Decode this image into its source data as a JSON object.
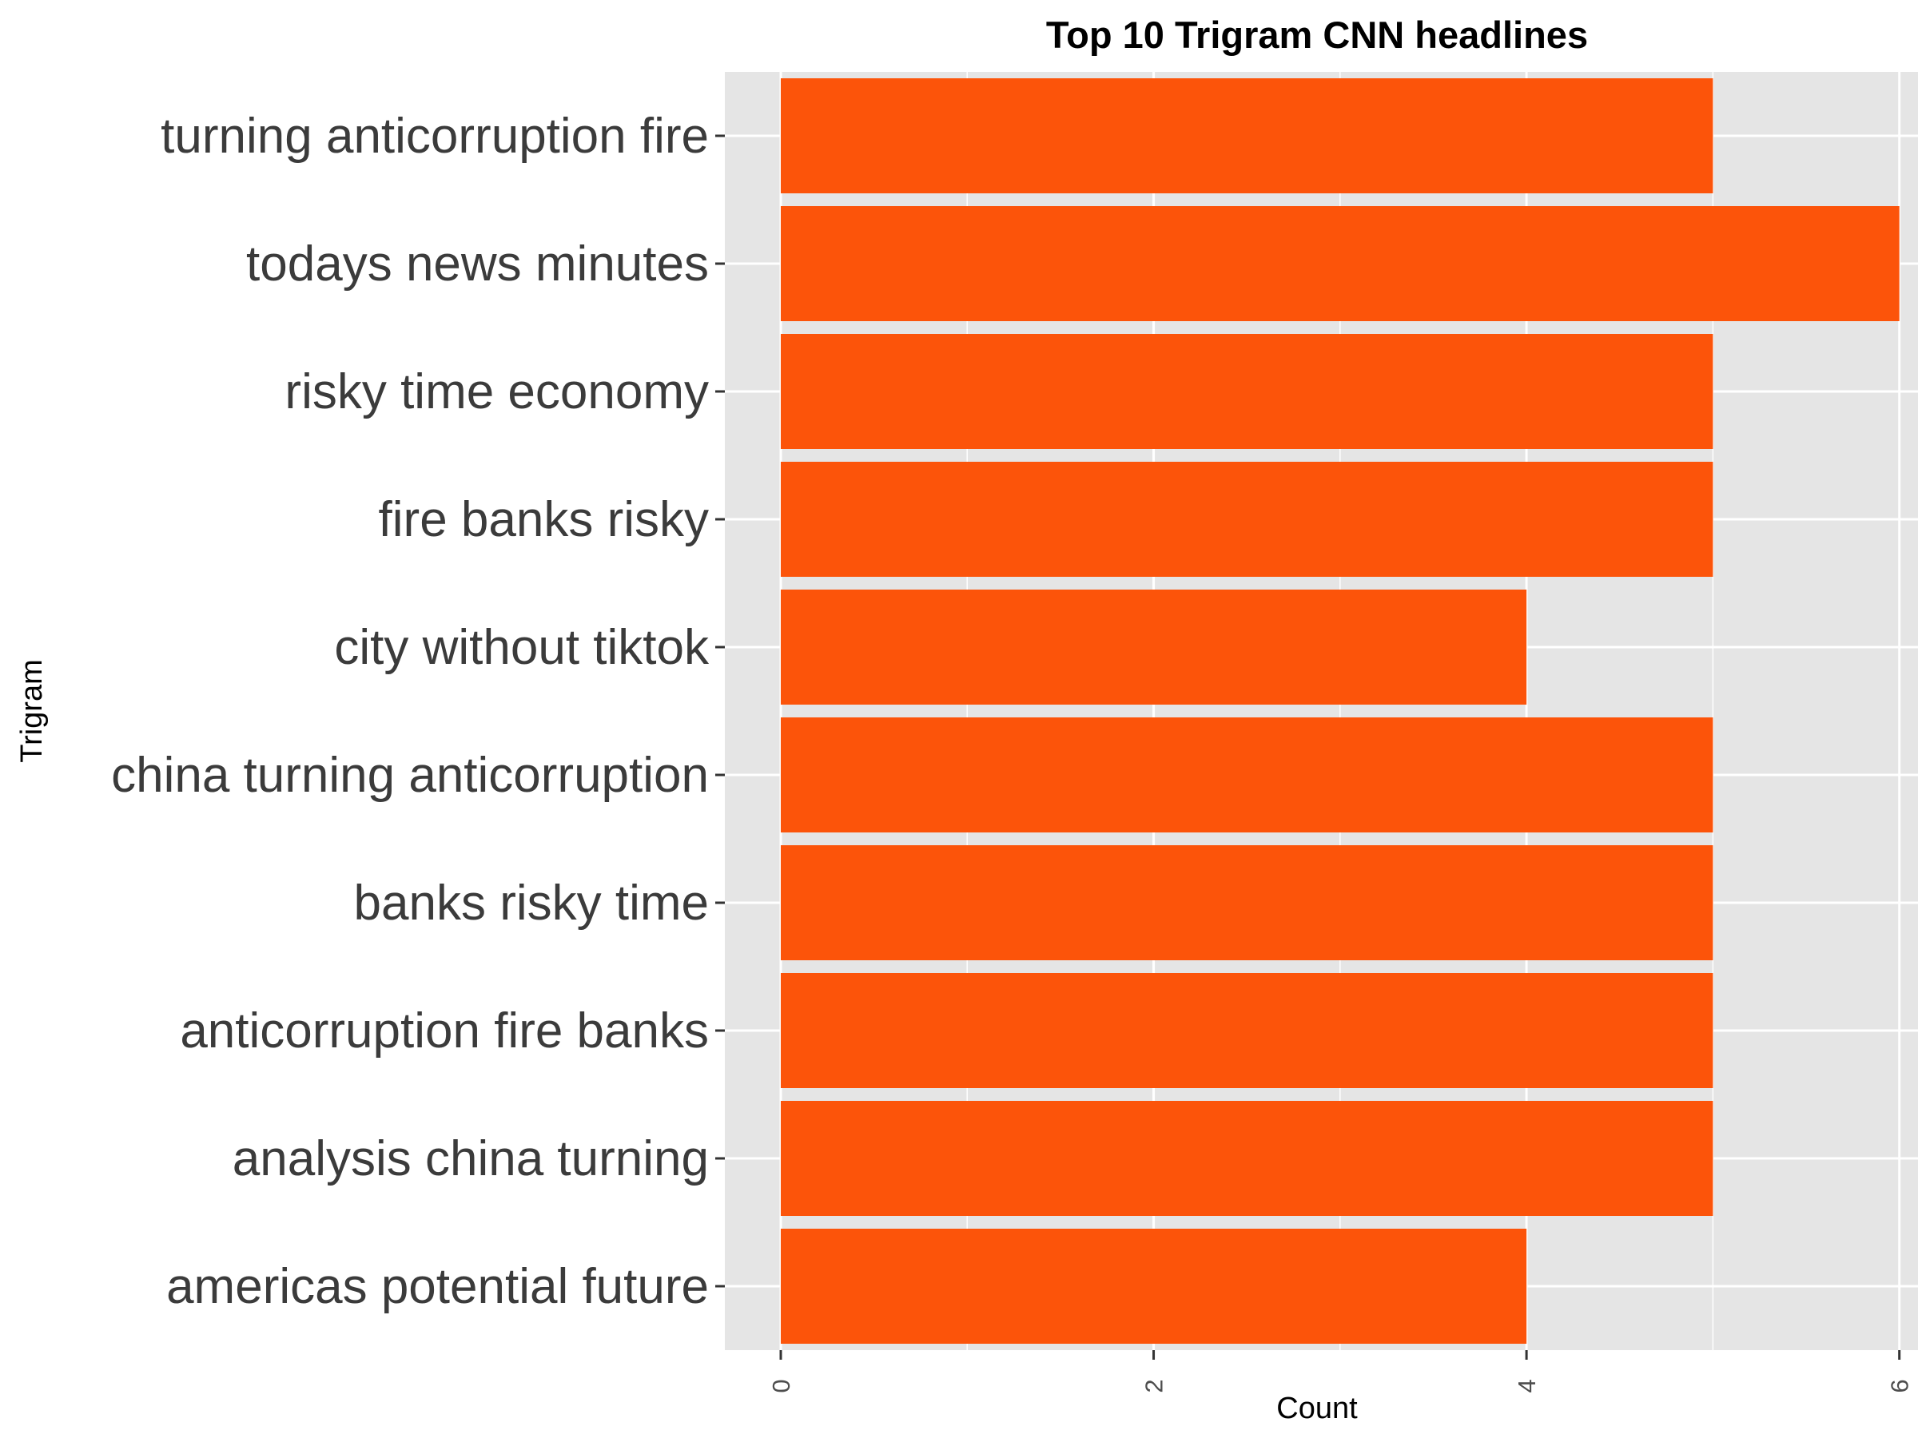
{
  "chart_data": {
    "type": "bar",
    "orientation": "horizontal",
    "title": "Top 10 Trigram CNN headlines",
    "xlabel": "Count",
    "ylabel": "Trigram",
    "categories": [
      "turning anticorruption fire",
      "todays news minutes",
      "risky time economy",
      "fire banks risky",
      "city without tiktok",
      "china turning anticorruption",
      "banks risky time",
      "anticorruption fire banks",
      "analysis china turning",
      "americas potential future"
    ],
    "values": [
      5,
      6,
      5,
      5,
      4,
      5,
      5,
      5,
      5,
      4
    ],
    "xlim": [
      -0.3,
      6.1
    ],
    "xticks": [
      0,
      2,
      4,
      6
    ],
    "grid": true,
    "legend": "none",
    "colors": {
      "bar": "#FC540A",
      "panel": "#E5E5E5",
      "grid": "#FFFFFF"
    }
  }
}
